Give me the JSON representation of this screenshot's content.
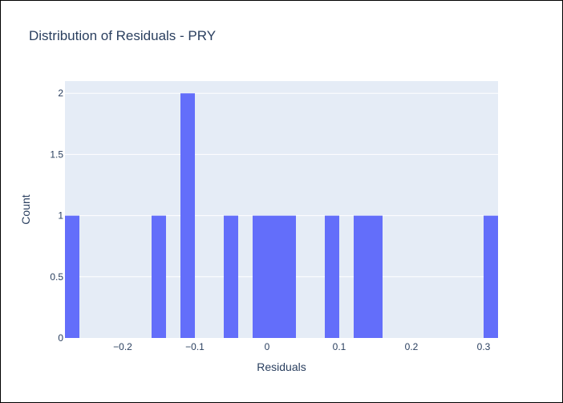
{
  "chart_data": {
    "type": "bar",
    "title": "Distribution of Residuals - PRY",
    "xlabel": "Residuals",
    "ylabel": "Count",
    "xlim": [
      -0.28,
      0.32
    ],
    "ylim": [
      0,
      2.1
    ],
    "bin_width": 0.02,
    "bins": [
      {
        "start": -0.28,
        "count": 1
      },
      {
        "start": -0.16,
        "count": 1
      },
      {
        "start": -0.12,
        "count": 2
      },
      {
        "start": -0.06,
        "count": 1
      },
      {
        "start": -0.02,
        "count": 1
      },
      {
        "start": 0.0,
        "count": 1
      },
      {
        "start": 0.02,
        "count": 1
      },
      {
        "start": 0.08,
        "count": 1
      },
      {
        "start": 0.12,
        "count": 1
      },
      {
        "start": 0.14,
        "count": 1
      },
      {
        "start": 0.3,
        "count": 1
      }
    ],
    "x_ticks": [
      {
        "value": -0.2,
        "label": "−0.2"
      },
      {
        "value": -0.1,
        "label": "−0.1"
      },
      {
        "value": 0,
        "label": "0"
      },
      {
        "value": 0.1,
        "label": "0.1"
      },
      {
        "value": 0.2,
        "label": "0.2"
      },
      {
        "value": 0.3,
        "label": "0.3"
      }
    ],
    "y_ticks": [
      {
        "value": 0,
        "label": "0"
      },
      {
        "value": 0.5,
        "label": "0.5"
      },
      {
        "value": 1,
        "label": "1"
      },
      {
        "value": 1.5,
        "label": "1.5"
      },
      {
        "value": 2,
        "label": "2"
      }
    ],
    "grid": true,
    "colors": {
      "bar": "#636efa",
      "plot_background": "#e5ecf6",
      "grid": "#ffffff",
      "text": "#2a3f5f"
    }
  }
}
